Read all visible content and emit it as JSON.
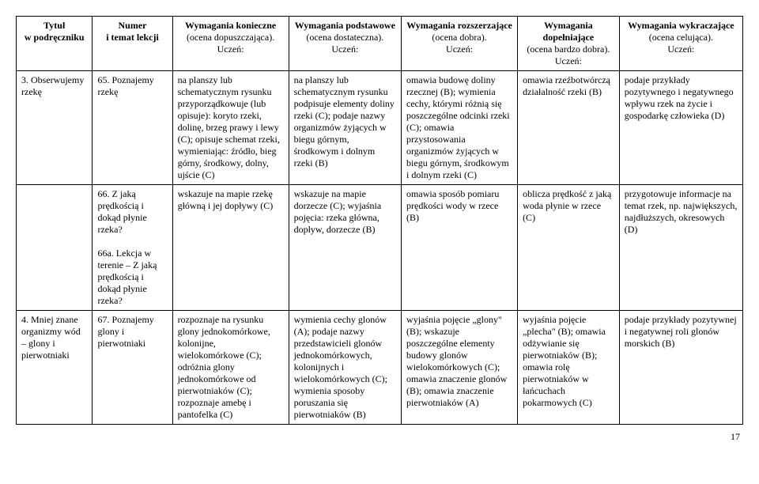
{
  "headers": {
    "c1a": "Tytuł",
    "c1b": "w podręczniku",
    "c2a": "Numer",
    "c2b": "i temat lekcji",
    "c3a": "Wymagania konieczne",
    "c3b": "(ocena dopuszczająca).",
    "c3c": "Uczeń:",
    "c4a": "Wymagania podstawowe",
    "c4b": "(ocena dostateczna).",
    "c4c": "Uczeń:",
    "c5a": "Wymagania rozszerzające",
    "c5b": "(ocena dobra).",
    "c5c": "Uczeń:",
    "c6a": "Wymagania dopełniające",
    "c6b": "(ocena bardzo dobra).",
    "c6c": "Uczeń:",
    "c7a": "Wymagania wykraczające",
    "c7b": "(ocena celująca).",
    "c7c": "Uczeń:"
  },
  "rows": [
    {
      "c1": "3. Obserwujemy rzekę",
      "c2": "65. Poznajemy rzekę",
      "c3": "na planszy lub schematycznym rysunku przyporządkowuje (lub opisuje): koryto rzeki, dolinę, brzeg prawy i lewy (C); opisuje schemat rzeki, wymieniając: źródło, bieg górny, środkowy, dolny, ujście (C)",
      "c4": "na planszy lub schematycznym rysunku podpisuje elementy doliny rzeki (C); podaje nazwy organizmów żyjących w biegu górnym, środkowym i dolnym rzeki (B)",
      "c5": "omawia budowę doliny rzecznej (B); wymienia cechy, którymi różnią się poszczególne odcinki rzeki (C); omawia przystosowania organizmów żyjących w biegu górnym, środkowym i dolnym rzeki (C)",
      "c6": "omawia rzeźbotwórczą działalność rzeki (B)",
      "c7": "podaje przykłady pozytywnego i negatywnego wpływu rzek na życie i gospodarkę człowieka (D)"
    },
    {
      "c1": "",
      "c2": "66. Z jaką prędkością i dokąd płynie rzeka?\n\n66a. Lekcja w terenie – Z jaką prędkością i dokąd płynie rzeka?",
      "c3": "wskazuje na mapie rzekę główną i jej dopływy (C)",
      "c4": "wskazuje na mapie dorzecze (C); wyjaśnia pojęcia: rzeka główna, dopływ, dorzecze (B)",
      "c5": "omawia sposób pomiaru prędkości wody w rzece (B)",
      "c6": "oblicza prędkość z jaką woda płynie w rzece (C)",
      "c7": "przygotowuje informacje na temat rzek, np. największych, najdłuższych, okresowych (D)"
    },
    {
      "c1": "4. Mniej znane organizmy wód – glony i pierwotniaki",
      "c2": "67. Poznajemy glony i pierwotniaki",
      "c3": "rozpoznaje na rysunku glony jednokomórkowe, kolonijne, wielokomórkowe (C); odróżnia glony jednokomórkowe od pierwotniaków (C); rozpoznaje amebę i pantofelka (C)",
      "c4": "wymienia cechy glonów (A); podaje nazwy przedstawicieli glonów jednokomórkowych, kolonijnych i wielokomórkowych (C); wymienia sposoby poruszania się pierwotniaków (B)",
      "c5": "wyjaśnia pojęcie „glony\" (B); wskazuje poszczególne elementy budowy glonów wielokomórkowych (C); omawia znaczenie glonów (B); omawia znaczenie pierwotniaków (A)",
      "c6": "wyjaśnia pojęcie „plecha\" (B); omawia odżywianie się pierwotniaków (B); omawia rolę pierwotniaków w łańcuchach pokarmowych (C)",
      "c7": "podaje przykłady pozytywnej i negatywnej roli glonów morskich (B)"
    }
  ],
  "pagenum": "17"
}
